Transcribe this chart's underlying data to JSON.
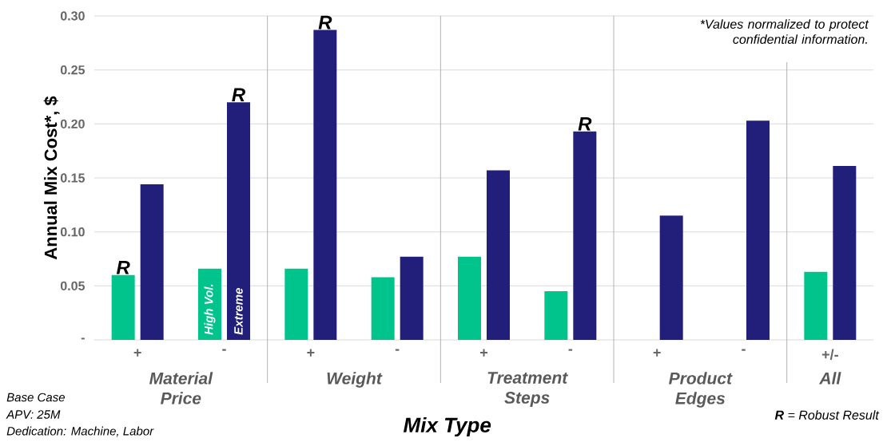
{
  "chart_data": {
    "type": "bar",
    "ylabel": "Annual Mix Cost*, $",
    "xlabel": "Mix Type",
    "categories": [
      "+",
      "-",
      "+",
      "-",
      "+",
      "-",
      "+",
      "-",
      "+/-"
    ],
    "series": [
      {
        "name": "High Vol.",
        "color": "#00c48c",
        "values": [
          0.06,
          0.066,
          0.066,
          0.058,
          0.077,
          0.045,
          null,
          null,
          0.063
        ],
        "value_labels": [
          "R",
          null,
          null,
          null,
          null,
          null,
          null,
          null,
          null
        ]
      },
      {
        "name": "Extreme",
        "color": "#221f7b",
        "values": [
          0.144,
          0.22,
          0.287,
          0.077,
          0.157,
          0.193,
          0.115,
          0.203,
          0.161
        ],
        "value_labels": [
          null,
          "R",
          "R",
          null,
          null,
          "R",
          null,
          null,
          null
        ]
      }
    ],
    "ylim": [
      0,
      0.3
    ],
    "yticks": [
      {
        "value": 0,
        "label": "-"
      },
      {
        "value": 0.05,
        "label": "0.05"
      },
      {
        "value": 0.1,
        "label": "0.10"
      },
      {
        "value": 0.15,
        "label": "0.15"
      },
      {
        "value": 0.2,
        "label": "0.20"
      },
      {
        "value": 0.25,
        "label": "0.25"
      },
      {
        "value": 0.3,
        "label": "0.30"
      }
    ],
    "grid": "y",
    "annotations": [
      "Material Price",
      "Weight",
      "Treatment Steps",
      "Product Edges",
      "All",
      "*Values normalized to protect confidential information.",
      "**R** = Robust Result",
      "Base Case",
      "APV: 25M",
      "Dedication: Machine, Labor"
    ]
  }
}
